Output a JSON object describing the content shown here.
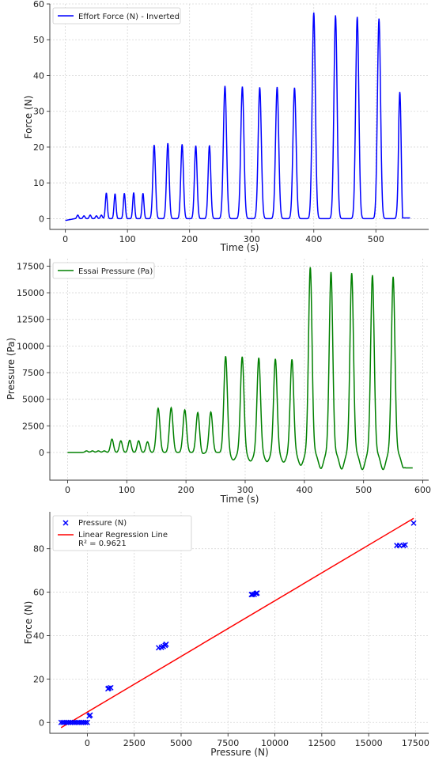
{
  "chart_data": [
    {
      "type": "line",
      "xlabel": "Time (s)",
      "ylabel": "Force (N)",
      "xlim": [
        -25,
        585
      ],
      "ylim": [
        -3,
        60
      ],
      "xticks": [
        0,
        100,
        200,
        300,
        400,
        500
      ],
      "yticks": [
        0,
        10,
        20,
        30,
        40,
        50,
        60
      ],
      "grid": true,
      "legend_position": "top-left",
      "series": [
        {
          "name": "Effort Force (N) - Inverted",
          "color": "#0000ff",
          "baseline": 0,
          "start_value": -0.5,
          "end_value": 0.2,
          "x_end": 555,
          "peaks": [
            {
              "x": 20,
              "y": 1
            },
            {
              "x": 30,
              "y": 0.8
            },
            {
              "x": 40,
              "y": 1
            },
            {
              "x": 50,
              "y": 0.8
            },
            {
              "x": 58,
              "y": 1
            },
            {
              "x": 66,
              "y": 7.2
            },
            {
              "x": 80,
              "y": 7
            },
            {
              "x": 95,
              "y": 7.1
            },
            {
              "x": 110,
              "y": 7.3
            },
            {
              "x": 125,
              "y": 7.1
            },
            {
              "x": 143,
              "y": 20.6
            },
            {
              "x": 165,
              "y": 21.1
            },
            {
              "x": 188,
              "y": 20.8
            },
            {
              "x": 210,
              "y": 20.4
            },
            {
              "x": 232,
              "y": 20.5
            },
            {
              "x": 257,
              "y": 37.1
            },
            {
              "x": 285,
              "y": 36.9
            },
            {
              "x": 313,
              "y": 36.7
            },
            {
              "x": 341,
              "y": 36.8
            },
            {
              "x": 369,
              "y": 36.6
            },
            {
              "x": 400,
              "y": 57.6
            },
            {
              "x": 435,
              "y": 56.8
            },
            {
              "x": 470,
              "y": 56.4
            },
            {
              "x": 505,
              "y": 55.9
            },
            {
              "x": 540,
              "y": 56.1
            }
          ]
        }
      ]
    },
    {
      "type": "line",
      "xlabel": "Time (s)",
      "ylabel": "Pressure (Pa)",
      "xlim": [
        -30,
        610
      ],
      "ylim": [
        -2600,
        18200
      ],
      "xticks": [
        0,
        100,
        200,
        300,
        400,
        500,
        600
      ],
      "yticks": [
        0,
        2500,
        5000,
        7500,
        10000,
        12500,
        15000,
        17500
      ],
      "grid": true,
      "legend_position": "top-left",
      "series": [
        {
          "name": "Essai Pressure (Pa)",
          "color": "#008000",
          "baseline": 0,
          "start_value": 0,
          "end_value": -1450,
          "x_end": 583,
          "peaks": [
            {
              "x": 32,
              "y": 150
            },
            {
              "x": 42,
              "y": 150
            },
            {
              "x": 52,
              "y": 150
            },
            {
              "x": 62,
              "y": 150
            },
            {
              "x": 75,
              "y": 1250
            },
            {
              "x": 90,
              "y": 1100
            },
            {
              "x": 105,
              "y": 1150
            },
            {
              "x": 120,
              "y": 1100
            },
            {
              "x": 135,
              "y": 1000
            },
            {
              "x": 153,
              "y": 4150
            },
            {
              "x": 175,
              "y": 4200
            },
            {
              "x": 198,
              "y": 4000
            },
            {
              "x": 220,
              "y": 3850
            },
            {
              "x": 242,
              "y": 3800
            },
            {
              "x": 267,
              "y": 9050
            },
            {
              "x": 295,
              "y": 9000
            },
            {
              "x": 323,
              "y": 8900
            },
            {
              "x": 351,
              "y": 8800
            },
            {
              "x": 379,
              "y": 8750
            },
            {
              "x": 410,
              "y": 17400
            },
            {
              "x": 445,
              "y": 16950
            },
            {
              "x": 480,
              "y": 16850
            },
            {
              "x": 515,
              "y": 16650
            },
            {
              "x": 550,
              "y": 16500
            }
          ],
          "troughs": [
            {
              "x": 225,
              "y": -200
            },
            {
              "x": 280,
              "y": -700
            },
            {
              "x": 309,
              "y": -800
            },
            {
              "x": 337,
              "y": -850
            },
            {
              "x": 365,
              "y": -900
            },
            {
              "x": 394,
              "y": -1200
            },
            {
              "x": 428,
              "y": -1500
            },
            {
              "x": 463,
              "y": -1550
            },
            {
              "x": 498,
              "y": -1600
            },
            {
              "x": 533,
              "y": -1600
            },
            {
              "x": 568,
              "y": -1450
            }
          ]
        }
      ]
    },
    {
      "type": "scatter",
      "xlabel": "Pressure (N)",
      "ylabel": "Force (N)",
      "xlim": [
        -2000,
        18200
      ],
      "ylim": [
        -5,
        97
      ],
      "xticks": [
        0,
        2500,
        5000,
        7500,
        10000,
        12500,
        15000,
        17500
      ],
      "yticks": [
        0,
        20,
        40,
        60,
        80
      ],
      "grid": true,
      "legend_position": "top-left",
      "series": [
        {
          "name": "Pressure (N)",
          "color": "#0000ff",
          "marker": "x",
          "points": [
            [
              -1400,
              0
            ],
            [
              -1300,
              0
            ],
            [
              -1200,
              0
            ],
            [
              -1100,
              0
            ],
            [
              -1000,
              0
            ],
            [
              -900,
              0
            ],
            [
              -800,
              0
            ],
            [
              -700,
              0
            ],
            [
              -600,
              0
            ],
            [
              -500,
              0
            ],
            [
              -400,
              0
            ],
            [
              -300,
              0
            ],
            [
              -200,
              0
            ],
            [
              -100,
              0
            ],
            [
              0,
              0
            ],
            [
              100,
              3
            ],
            [
              150,
              3.4
            ],
            [
              1100,
              15.5
            ],
            [
              1150,
              15.8
            ],
            [
              1250,
              16
            ],
            [
              3800,
              34.4
            ],
            [
              3950,
              34.6
            ],
            [
              4050,
              35
            ],
            [
              4150,
              35.5
            ],
            [
              4200,
              36
            ],
            [
              8750,
              58.9
            ],
            [
              8800,
              58.9
            ],
            [
              8900,
              59
            ],
            [
              9000,
              59.4
            ],
            [
              9050,
              59.6
            ],
            [
              16500,
              81.5
            ],
            [
              16650,
              81.5
            ],
            [
              16850,
              81.5
            ],
            [
              16950,
              81.8
            ],
            [
              17400,
              91.8
            ]
          ]
        },
        {
          "name": "Linear Regression Line",
          "name_line2": "R² = 0.9621",
          "color": "#ff0000",
          "line": [
            [
              -1400,
              -2.4
            ],
            [
              17400,
              94
            ]
          ]
        }
      ]
    }
  ]
}
